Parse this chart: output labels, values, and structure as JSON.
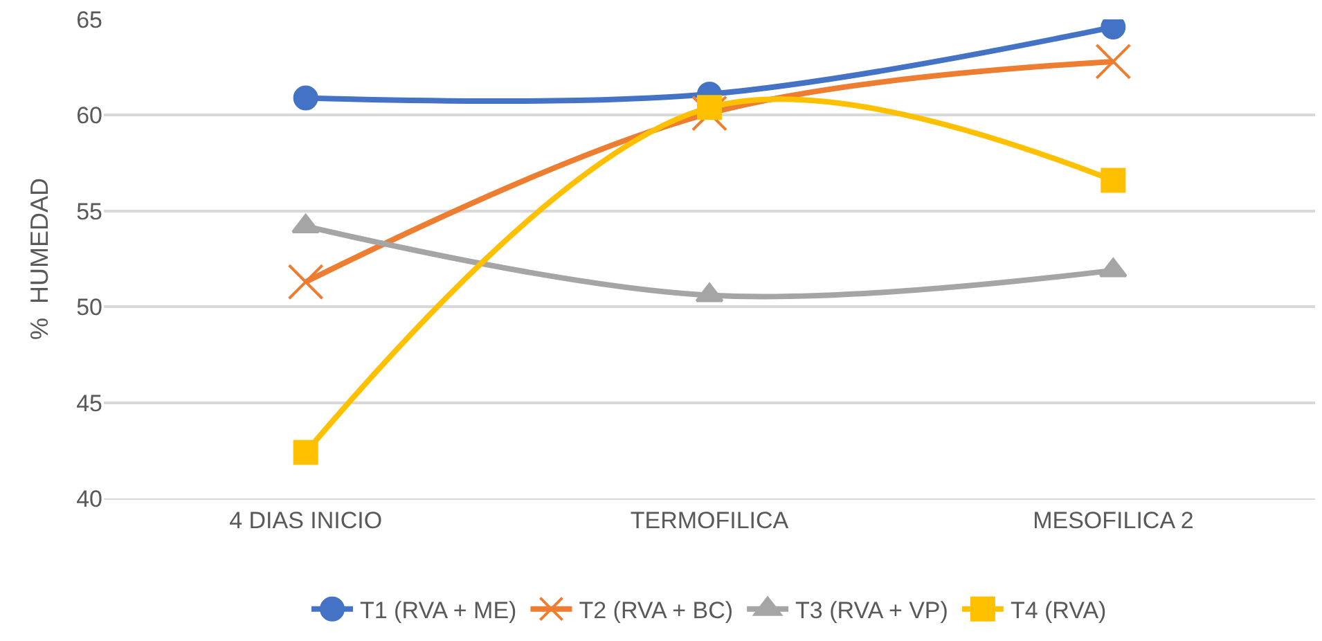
{
  "chart_data": {
    "type": "line",
    "ylabel": "%  HUMEDAD",
    "categories": [
      "4 DIAS INICIO",
      "TERMOFILICA",
      "MESOFILICA 2"
    ],
    "series": [
      {
        "name": "T1 (RVA + ME)",
        "color": "#4472c4",
        "marker": "circle",
        "values": [
          60.9,
          61.1,
          64.6
        ]
      },
      {
        "name": "T2 (RVA + BC)",
        "color": "#ed7d31",
        "marker": "cross",
        "values": [
          51.3,
          60.1,
          62.8
        ]
      },
      {
        "name": "T3 (RVA + VP)",
        "color": "#a5a5a5",
        "marker": "triangle",
        "values": [
          54.2,
          50.6,
          51.9
        ]
      },
      {
        "name": "T4 (RVA)",
        "color": "#ffc000",
        "marker": "square",
        "values": [
          42.4,
          60.4,
          56.6
        ]
      }
    ],
    "ylim": [
      40,
      65
    ],
    "yticks": [
      40,
      45,
      50,
      55,
      60,
      65
    ],
    "grid": "y",
    "legend": "bottom",
    "line_style": "solid"
  }
}
